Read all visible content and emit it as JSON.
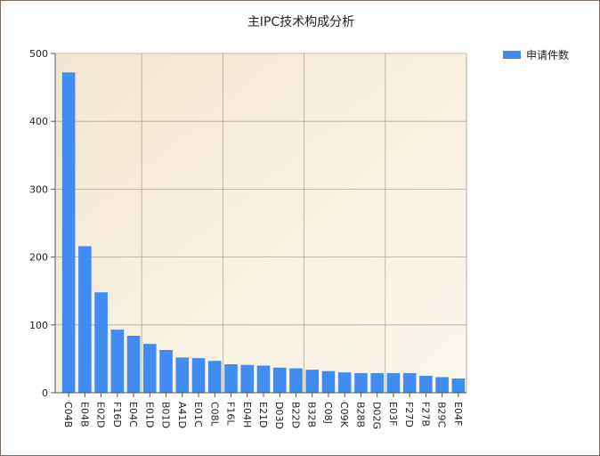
{
  "chart_data": {
    "type": "bar",
    "title": "主IPC技术构成分析",
    "xlabel": "",
    "ylabel": "",
    "ylim": [
      0,
      500
    ],
    "yticks": [
      0,
      100,
      200,
      300,
      400,
      500
    ],
    "grid": true,
    "legend_position": "top-right",
    "categories": [
      "C04B",
      "E04B",
      "E02D",
      "F16D",
      "E04C",
      "E01D",
      "B01D",
      "A41D",
      "E01C",
      "C08L",
      "F16L",
      "E04H",
      "E21D",
      "D03D",
      "B22D",
      "B32B",
      "C08J",
      "C09K",
      "B28B",
      "D02G",
      "E03F",
      "F27D",
      "F27B",
      "B29C",
      "E04F"
    ],
    "series": [
      {
        "name": "申请件数",
        "color": "#418cf0",
        "values": [
          472,
          216,
          148,
          93,
          84,
          72,
          63,
          52,
          51,
          47,
          42,
          41,
          40,
          37,
          36,
          34,
          32,
          30,
          29,
          29,
          29,
          29,
          25,
          23,
          21
        ]
      }
    ]
  }
}
